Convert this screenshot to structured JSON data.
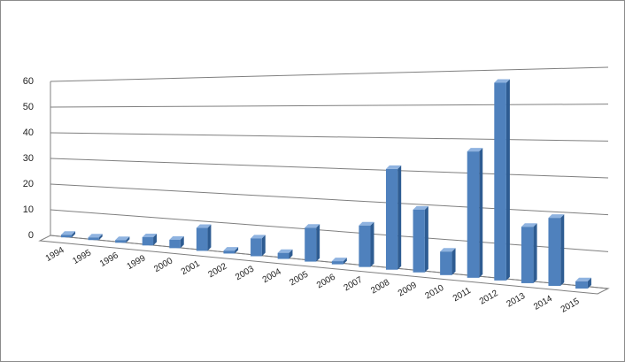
{
  "chart_data": {
    "type": "bar",
    "categories": [
      "1994",
      "1995",
      "1996",
      "1999",
      "2000",
      "2001",
      "2002",
      "2003",
      "2004",
      "2005",
      "2006",
      "2007",
      "2008",
      "2009",
      "2010",
      "2011",
      "2012",
      "2013",
      "2014",
      "2015"
    ],
    "values": [
      1,
      1,
      1,
      3,
      3,
      8,
      1,
      6,
      2,
      11,
      1,
      13,
      31,
      19,
      7,
      37,
      57,
      16,
      19,
      2
    ],
    "ylim": [
      0,
      60
    ],
    "yticks": [
      "0",
      "10",
      "20",
      "30",
      "40",
      "50",
      "60"
    ],
    "grid": true,
    "legend": "none",
    "style": "3d-perspective"
  },
  "colors": {
    "bar_front": "#4f81bd",
    "bar_side": "#2e5c92",
    "bar_top": "#8fb3e0",
    "gridline": "#7f7f7f",
    "frame": "#8c8c8c"
  }
}
